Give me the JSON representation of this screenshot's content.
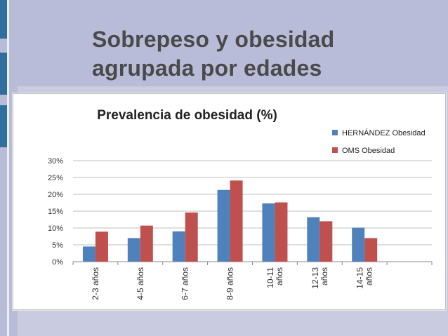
{
  "slide": {
    "title_line1": "Sobrepeso y obesidad",
    "title_line2": "agrupada por edades"
  },
  "colors": {
    "series1": "#4f81bd",
    "series2": "#c0504d",
    "accent": "#2e6f9f"
  },
  "chart_data": {
    "type": "bar",
    "title": "Prevalencia de obesidad (%)",
    "categories": [
      [
        "2-3 años"
      ],
      [
        "4-5 años"
      ],
      [
        "6-7 años"
      ],
      [
        "8-9 años"
      ],
      [
        "10-11",
        "años"
      ],
      [
        "12-13",
        "años"
      ],
      [
        "14-15",
        "años"
      ],
      [
        ""
      ]
    ],
    "series": [
      {
        "name": "HERNÁNDEZ Obesidad",
        "values": [
          4.5,
          7.0,
          9.0,
          21.3,
          17.3,
          13.2,
          10.1,
          null
        ]
      },
      {
        "name": "OMS Obesidad",
        "values": [
          8.9,
          10.7,
          14.6,
          24.1,
          17.6,
          12.0,
          7.0,
          null
        ]
      }
    ],
    "yticks": [
      "0%",
      "5%",
      "10%",
      "15%",
      "20%",
      "25%",
      "30%"
    ],
    "ylim": [
      0,
      30
    ],
    "grid": true,
    "legend": "top-right"
  }
}
